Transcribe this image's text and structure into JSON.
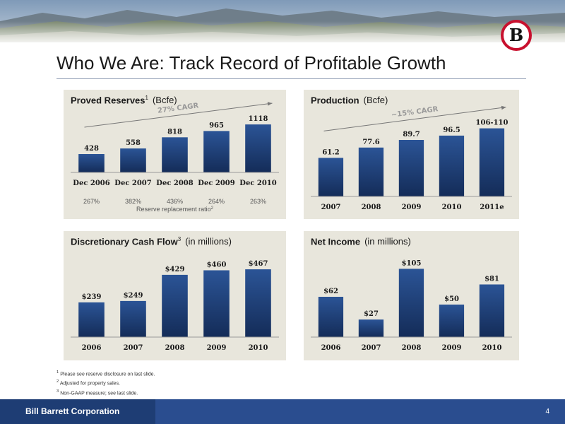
{
  "page": {
    "title": "Who We Are: Track Record of Profitable Growth",
    "logo_letter": "B",
    "company": "Bill Barrett Corporation",
    "page_number": "4",
    "footnotes": [
      {
        "mark": "1",
        "text": "Please see reserve disclosure on last slide."
      },
      {
        "mark": "2",
        "text": "Adjusted for property sales."
      },
      {
        "mark": "3",
        "text": "Non-GAAP measure; see last slide."
      }
    ],
    "colors": {
      "bar": "#1f3f78",
      "panel": "#e8e6dc",
      "footer": "#2a4d8f",
      "logo_ring": "#c8102e"
    }
  },
  "chart_data": [
    {
      "type": "bar",
      "title": "Proved Reserves",
      "title_sup": "1",
      "unit": "(Bcfe)",
      "categories": [
        "Dec 2006",
        "Dec 2007",
        "Dec 2008",
        "Dec 2009",
        "Dec 2010"
      ],
      "values": [
        428,
        558,
        818,
        965,
        1118
      ],
      "labels": [
        "428",
        "558",
        "818",
        "965",
        "1118"
      ],
      "ylim": [
        0,
        1350
      ],
      "annotation": "27% CAGR",
      "sub_values": [
        "267%",
        "382%",
        "436%",
        "264%",
        "263%"
      ],
      "sub_caption": "Reserve replacement ratio",
      "sub_caption_sup": "2"
    },
    {
      "type": "bar",
      "title": "Production",
      "title_sup": "",
      "unit": "(Bcfe)",
      "categories": [
        "2007",
        "2008",
        "2009",
        "2010",
        "2011e"
      ],
      "values": [
        61.2,
        77.6,
        89.7,
        96.5,
        108
      ],
      "labels": [
        "61.2",
        "77.6",
        "89.7",
        "96.5",
        "106-110"
      ],
      "ylim": [
        0,
        130
      ],
      "annotation": "~15% CAGR"
    },
    {
      "type": "bar",
      "title": "Discretionary Cash Flow",
      "title_sup": "3",
      "unit": "(in millions)",
      "categories": [
        "2006",
        "2007",
        "2008",
        "2009",
        "2010"
      ],
      "values": [
        239,
        249,
        429,
        460,
        467
      ],
      "labels": [
        "$239",
        "$249",
        "$429",
        "$460",
        "$467"
      ],
      "ylim": [
        0,
        560
      ]
    },
    {
      "type": "bar",
      "title": "Net Income",
      "title_sup": "",
      "unit": "(in millions)",
      "categories": [
        "2006",
        "2007",
        "2008",
        "2009",
        "2010"
      ],
      "values": [
        62,
        27,
        105,
        50,
        81
      ],
      "labels": [
        "$62",
        "$27",
        "$105",
        "$50",
        "$81"
      ],
      "ylim": [
        0,
        125
      ]
    }
  ]
}
